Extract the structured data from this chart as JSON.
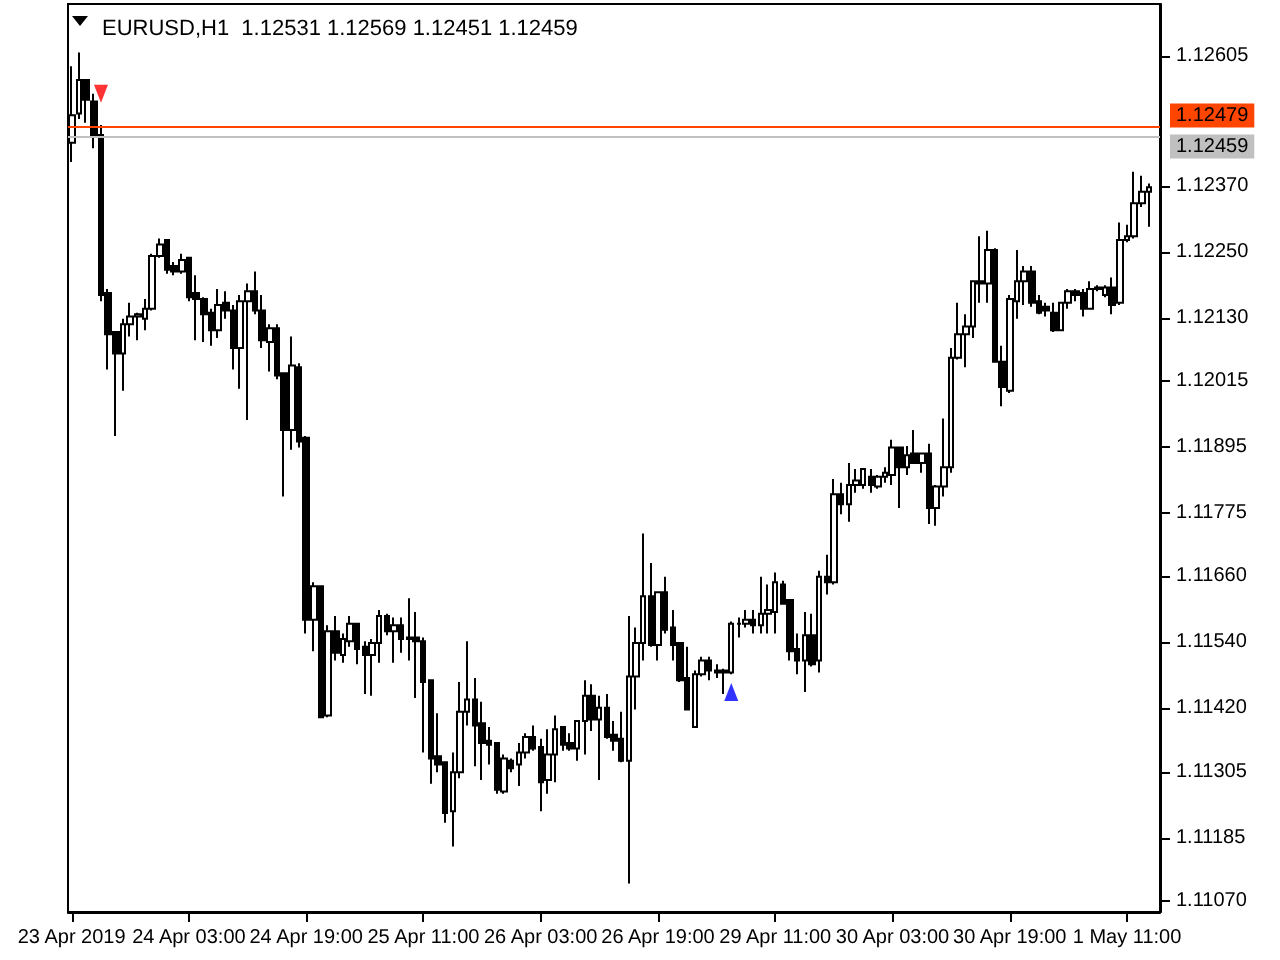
{
  "chart_data": {
    "type": "candlestick",
    "title": "EURUSD,H1  1.12531 1.12569 1.12451 1.12459",
    "categories": [
      "23 Apr 2019",
      null,
      null,
      null,
      null,
      null,
      null,
      null,
      null,
      null,
      null,
      null,
      null,
      null,
      null,
      null,
      "24 Apr 03:00",
      null,
      null,
      null,
      null,
      null,
      null,
      null,
      null,
      null,
      null,
      null,
      null,
      null,
      null,
      null,
      "24 Apr 19:00",
      null,
      null,
      null,
      null,
      null,
      null,
      null,
      null,
      null,
      null,
      null,
      null,
      null,
      null,
      null,
      "25 Apr 11:00",
      null,
      null,
      null,
      null,
      null,
      null,
      null,
      null,
      null,
      null,
      null,
      null,
      null,
      null,
      null,
      "26 Apr 03:00",
      null,
      null,
      null,
      null,
      null,
      null,
      null,
      null,
      null,
      null,
      null,
      null,
      null,
      null,
      null,
      "26 Apr 19:00",
      null,
      null,
      null,
      null,
      null,
      null,
      null,
      null,
      null,
      null,
      null,
      null,
      null,
      null,
      null,
      "29 Apr 11:00",
      null,
      null,
      null,
      null,
      null,
      null,
      null,
      null,
      null,
      null,
      null,
      null,
      null,
      null,
      null,
      "30 Apr 03:00",
      null,
      null,
      null,
      null,
      null,
      null,
      null,
      null,
      null,
      null,
      null,
      null,
      null,
      null,
      null,
      "30 Apr 19:00",
      null,
      null,
      null,
      null,
      null,
      null,
      null,
      null,
      null,
      null,
      null,
      null,
      null,
      null,
      null,
      "1 May 11:00",
      null,
      null,
      null
    ],
    "ohlc": [
      [
        1.12448,
        1.12587,
        1.12413,
        1.12498
      ],
      [
        1.12501,
        1.12612,
        1.12491,
        1.12562
      ],
      [
        1.12562,
        1.12562,
        1.12484,
        1.12526
      ],
      [
        1.12523,
        1.12537,
        1.12438,
        1.12459
      ],
      [
        1.12462,
        1.1248,
        1.1216,
        1.12171
      ],
      [
        1.12175,
        1.12182,
        1.12036,
        1.121
      ],
      [
        1.12104,
        1.12104,
        1.11915,
        1.12065
      ],
      [
        1.12065,
        1.12128,
        1.11997,
        1.12118
      ],
      [
        1.12118,
        1.12157,
        1.12096,
        1.12132
      ],
      [
        1.12132,
        1.12139,
        1.12089,
        1.12136
      ],
      [
        1.12128,
        1.12164,
        1.12107,
        1.12146
      ],
      [
        1.12146,
        1.12246,
        1.12143,
        1.12242
      ],
      [
        1.12242,
        1.12274,
        1.12239,
        1.12263
      ],
      [
        1.12271,
        1.12271,
        1.1221,
        1.12217
      ],
      [
        1.12224,
        1.12231,
        1.12207,
        1.12214
      ],
      [
        1.12214,
        1.12246,
        1.1221,
        1.12235
      ],
      [
        1.12239,
        1.12239,
        1.1216,
        1.12167
      ],
      [
        1.12175,
        1.12207,
        1.12089,
        1.12164
      ],
      [
        1.12164,
        1.12167,
        1.12086,
        1.12136
      ],
      [
        1.12139,
        1.12146,
        1.12079,
        1.12107
      ],
      [
        1.12107,
        1.12182,
        1.12093,
        1.12153
      ],
      [
        1.12157,
        1.12178,
        1.12128,
        1.12143
      ],
      [
        1.12143,
        1.12153,
        1.12036,
        1.12075
      ],
      [
        1.12075,
        1.12171,
        1.12001,
        1.1216
      ],
      [
        1.1216,
        1.12192,
        1.11944,
        1.12178
      ],
      [
        1.12178,
        1.12214,
        1.12136,
        1.12143
      ],
      [
        1.12143,
        1.12171,
        1.12075,
        1.12089
      ],
      [
        1.12086,
        1.12118,
        1.12032,
        1.12111
      ],
      [
        1.12111,
        1.12118,
        1.12018,
        1.12025
      ],
      [
        1.12029,
        1.12029,
        1.11805,
        1.11926
      ],
      [
        1.11926,
        1.12096,
        1.1189,
        1.12043
      ],
      [
        1.1204,
        1.12047,
        1.11894,
        1.11905
      ],
      [
        1.11912,
        1.11915,
        1.11556,
        1.11581
      ],
      [
        1.11581,
        1.11649,
        1.11524,
        1.11642
      ],
      [
        1.11642,
        1.11642,
        1.11404,
        1.11404
      ],
      [
        1.11407,
        1.11571,
        1.11404,
        1.1156
      ],
      [
        1.1156,
        1.11588,
        1.11507,
        1.11521
      ],
      [
        1.11517,
        1.11556,
        1.11503,
        1.11546
      ],
      [
        1.11542,
        1.11588,
        1.11532,
        1.11574
      ],
      [
        1.11574,
        1.11574,
        1.115,
        1.11528
      ],
      [
        1.11532,
        1.11542,
        1.11446,
        1.11517
      ],
      [
        1.11517,
        1.11546,
        1.11443,
        1.11539
      ],
      [
        1.11539,
        1.11599,
        1.11503,
        1.11588
      ],
      [
        1.11588,
        1.11592,
        1.11553,
        1.1156
      ],
      [
        1.1156,
        1.11585,
        1.11503,
        1.11571
      ],
      [
        1.11571,
        1.11585,
        1.11521,
        1.11546
      ],
      [
        1.11546,
        1.1162,
        1.11507,
        1.11549
      ],
      [
        1.11549,
        1.11595,
        1.11439,
        1.11542
      ],
      [
        1.11542,
        1.11549,
        1.1134,
        1.11468
      ],
      [
        1.11471,
        1.11471,
        1.11283,
        1.11329
      ],
      [
        1.11333,
        1.11411,
        1.11304,
        1.11318
      ],
      [
        1.11322,
        1.11322,
        1.11212,
        1.1123
      ],
      [
        1.11233,
        1.1134,
        1.11169,
        1.11304
      ],
      [
        1.11304,
        1.11468,
        1.11293,
        1.11414
      ],
      [
        1.11414,
        1.11542,
        1.11389,
        1.11436
      ],
      [
        1.11436,
        1.11475,
        1.11315,
        1.11389
      ],
      [
        1.11393,
        1.11432,
        1.1129,
        1.11357
      ],
      [
        1.11361,
        1.11386,
        1.11318,
        1.11354
      ],
      [
        1.11357,
        1.11357,
        1.11265,
        1.11272
      ],
      [
        1.11269,
        1.11336,
        1.11265,
        1.11329
      ],
      [
        1.11325,
        1.11329,
        1.11304,
        1.11311
      ],
      [
        1.11318,
        1.11357,
        1.11279,
        1.1134
      ],
      [
        1.1134,
        1.11375,
        1.11329,
        1.11368
      ],
      [
        1.11368,
        1.11389,
        1.11343,
        1.11347
      ],
      [
        1.1135,
        1.11365,
        1.11233,
        1.11286
      ],
      [
        1.1129,
        1.11382,
        1.11265,
        1.11336
      ],
      [
        1.11336,
        1.11407,
        1.11286,
        1.11382
      ],
      [
        1.11386,
        1.11386,
        1.11343,
        1.11354
      ],
      [
        1.11357,
        1.11375,
        1.11343,
        1.11347
      ],
      [
        1.11347,
        1.11397,
        1.11325,
        1.11397
      ],
      [
        1.11397,
        1.11471,
        1.11336,
        1.11443
      ],
      [
        1.11443,
        1.11464,
        1.11379,
        1.114
      ],
      [
        1.114,
        1.11443,
        1.1129,
        1.11421
      ],
      [
        1.11421,
        1.11446,
        1.11365,
        1.11368
      ],
      [
        1.11372,
        1.11397,
        1.11343,
        1.11361
      ],
      [
        1.11365,
        1.11414,
        1.11322,
        1.11325
      ],
      [
        1.11325,
        1.11588,
        1.11102,
        1.11478
      ],
      [
        1.11478,
        1.11567,
        1.11418,
        1.11539
      ],
      [
        1.11539,
        1.11738,
        1.11507,
        1.11624
      ],
      [
        1.11624,
        1.11684,
        1.11532,
        1.11535
      ],
      [
        1.11535,
        1.11631,
        1.11507,
        1.11631
      ],
      [
        1.11631,
        1.11659,
        1.11556,
        1.11563
      ],
      [
        1.11567,
        1.11599,
        1.11507,
        1.11535
      ],
      [
        1.11539,
        1.11539,
        1.11468,
        1.11471
      ],
      [
        1.11475,
        1.11532,
        1.11418,
        1.11418
      ],
      [
        1.11386,
        1.11489,
        1.11386,
        1.11482
      ],
      [
        1.11482,
        1.11514,
        1.11478,
        1.11507
      ],
      [
        1.11507,
        1.11514,
        1.11471,
        1.11489
      ],
      [
        1.11489,
        1.115,
        1.11475,
        1.11485
      ],
      [
        1.11489,
        1.11492,
        1.11446,
        1.11485
      ],
      [
        1.11485,
        1.11578,
        1.11482,
        1.11574
      ],
      [
        1.11574,
        1.11585,
        1.11549,
        1.11574
      ],
      [
        1.11574,
        1.11599,
        1.11567,
        1.11581
      ],
      [
        1.11581,
        1.11599,
        1.11556,
        1.11571
      ],
      [
        1.11571,
        1.11659,
        1.11556,
        1.11592
      ],
      [
        1.11592,
        1.11645,
        1.11556,
        1.11599
      ],
      [
        1.11595,
        1.11667,
        1.11556,
        1.11649
      ],
      [
        1.11645,
        1.11652,
        1.1161,
        1.1161
      ],
      [
        1.11617,
        1.11617,
        1.11507,
        1.11524
      ],
      [
        1.11528,
        1.11556,
        1.11482,
        1.11507
      ],
      [
        1.11507,
        1.11595,
        1.1145,
        1.11553
      ],
      [
        1.11553,
        1.11592,
        1.11496,
        1.115
      ],
      [
        1.11507,
        1.1167,
        1.11485,
        1.11659
      ],
      [
        1.11659,
        1.11699,
        1.11627,
        1.11649
      ],
      [
        1.11649,
        1.11837,
        1.11645,
        1.11809
      ],
      [
        1.11809,
        1.1183,
        1.11773,
        1.11791
      ],
      [
        1.11791,
        1.11866,
        1.11759,
        1.11826
      ],
      [
        1.11826,
        1.11855,
        1.11812,
        1.11834
      ],
      [
        1.11826,
        1.11855,
        1.11819,
        1.11855
      ],
      [
        1.11841,
        1.11855,
        1.11812,
        1.11826
      ],
      [
        1.11823,
        1.11844,
        1.11819,
        1.11841
      ],
      [
        1.11841,
        1.11858,
        1.1183,
        1.11848
      ],
      [
        1.11844,
        1.11908,
        1.11826,
        1.11894
      ],
      [
        1.11894,
        1.11894,
        1.11784,
        1.11858
      ],
      [
        1.11858,
        1.11897,
        1.11844,
        1.1188
      ],
      [
        1.11883,
        1.11926,
        1.11866,
        1.11866
      ],
      [
        1.11866,
        1.11883,
        1.11848,
        1.11883
      ],
      [
        1.11883,
        1.11901,
        1.11755,
        1.11784
      ],
      [
        1.11784,
        1.11826,
        1.11752,
        1.11823
      ],
      [
        1.11823,
        1.11947,
        1.11805,
        1.11858
      ],
      [
        1.11858,
        1.12075,
        1.11848,
        1.12057
      ],
      [
        1.12057,
        1.12157,
        1.12054,
        1.121
      ],
      [
        1.121,
        1.12136,
        1.1204,
        1.12114
      ],
      [
        1.12114,
        1.12196,
        1.12093,
        1.12196
      ],
      [
        1.12196,
        1.12278,
        1.12157,
        1.12192
      ],
      [
        1.12192,
        1.12288,
        1.12157,
        1.12253
      ],
      [
        1.12253,
        1.12256,
        1.1205,
        1.1205
      ],
      [
        1.1205,
        1.12079,
        1.11969,
        1.12004
      ],
      [
        1.11997,
        1.12171,
        1.11993,
        1.12164
      ],
      [
        1.1216,
        1.12253,
        1.12128,
        1.12196
      ],
      [
        1.12196,
        1.12224,
        1.12153,
        1.12214
      ],
      [
        1.12214,
        1.12224,
        1.1215,
        1.12157
      ],
      [
        1.1216,
        1.12171,
        1.12136,
        1.12139
      ],
      [
        1.1215,
        1.12157,
        1.12132,
        1.12143
      ],
      [
        1.12139,
        1.12157,
        1.12104,
        1.12107
      ],
      [
        1.12107,
        1.12157,
        1.12107,
        1.12157
      ],
      [
        1.12157,
        1.12182,
        1.12146,
        1.12178
      ],
      [
        1.12178,
        1.12182,
        1.1216,
        1.12171
      ],
      [
        1.12175,
        1.12182,
        1.12132,
        1.12146
      ],
      [
        1.12146,
        1.12196,
        1.12146,
        1.12182
      ],
      [
        1.12182,
        1.12189,
        1.12178,
        1.12185
      ],
      [
        1.12171,
        1.12189,
        1.12167,
        1.12185
      ],
      [
        1.12185,
        1.12203,
        1.12136,
        1.12153
      ],
      [
        1.12157,
        1.12303,
        1.12153,
        1.12271
      ],
      [
        1.12271,
        1.12299,
        1.12267,
        1.12278
      ],
      [
        1.12278,
        1.12395,
        1.12274,
        1.12338
      ],
      [
        1.12338,
        1.12388,
        1.12331,
        1.12359
      ],
      [
        1.12359,
        1.12374,
        1.12295,
        1.12367
      ]
    ],
    "series": [
      {
        "type": "scatter",
        "color": "#ff0000",
        "marker": "triangle",
        "values": [
          null,
          null,
          null,
          null,
          1.12537,
          null,
          null,
          null,
          null,
          null,
          null,
          null,
          null,
          null,
          null,
          null,
          null,
          null,
          null,
          null,
          null,
          null,
          null,
          null,
          null,
          null,
          null,
          null,
          null,
          null,
          null,
          null,
          null,
          null,
          null,
          null,
          null,
          null,
          null,
          null,
          null,
          null,
          null,
          null,
          null,
          null,
          null,
          null,
          null,
          null,
          null,
          null,
          null,
          null,
          null,
          null,
          null,
          null,
          null,
          null,
          null,
          null,
          null,
          null,
          null,
          null,
          null,
          null,
          null,
          null,
          null,
          null,
          null,
          null,
          null,
          null,
          null,
          null,
          null,
          null,
          null,
          null,
          null,
          null,
          null,
          null,
          null,
          null,
          null,
          null,
          null,
          null,
          null,
          null,
          null,
          null,
          null,
          null,
          null,
          null,
          null,
          null,
          null,
          null,
          null,
          null,
          null,
          null,
          null,
          null,
          null,
          null,
          null,
          null,
          null,
          null,
          null,
          null,
          null,
          null,
          null,
          null,
          null,
          null,
          null,
          null,
          null,
          null,
          null,
          null,
          null,
          null,
          null,
          null,
          null,
          null,
          null,
          null,
          null,
          null,
          null,
          null,
          null,
          null,
          null,
          null,
          null,
          null
        ]
      },
      {
        "type": "scatter",
        "color": "#0000ff",
        "marker": "triangle",
        "values": [
          null,
          null,
          null,
          null,
          null,
          null,
          null,
          null,
          null,
          null,
          null,
          null,
          null,
          null,
          null,
          null,
          null,
          null,
          null,
          null,
          null,
          null,
          null,
          null,
          null,
          null,
          null,
          null,
          null,
          null,
          null,
          null,
          null,
          null,
          null,
          null,
          null,
          null,
          null,
          null,
          null,
          null,
          null,
          null,
          null,
          null,
          null,
          null,
          null,
          null,
          null,
          null,
          null,
          null,
          null,
          null,
          null,
          null,
          null,
          null,
          null,
          null,
          null,
          null,
          null,
          null,
          null,
          null,
          null,
          null,
          null,
          null,
          null,
          null,
          null,
          null,
          null,
          null,
          null,
          null,
          null,
          null,
          null,
          null,
          null,
          null,
          null,
          null,
          null,
          null,
          1.1145,
          null,
          null,
          null,
          null,
          null,
          null,
          null,
          null,
          null,
          null,
          null,
          null,
          null,
          null,
          null,
          null,
          null,
          null,
          null,
          null,
          null,
          null,
          null,
          null,
          null,
          null,
          null,
          null,
          null,
          null,
          null,
          null,
          null,
          null,
          null,
          null,
          null,
          null,
          null,
          null,
          null,
          null,
          null,
          null,
          null,
          null,
          null,
          null,
          null,
          null,
          null,
          null,
          null,
          null,
          null,
          null,
          null
        ]
      }
    ],
    "ylim": [
      1.1105,
      1.127
    ],
    "yticks": [
      1.12605,
      {
        "value": 1.1237,
        "label": "1.12370"
      },
      {
        "value": 1.1225,
        "label": "1.12250"
      },
      {
        "value": 1.1213,
        "label": "1.12130"
      },
      1.12015,
      1.11895,
      1.11775,
      {
        "value": 1.1166,
        "label": "1.11660"
      },
      {
        "value": 1.1154,
        "label": "1.11540"
      },
      {
        "value": 1.1142,
        "label": "1.11420"
      },
      1.11305,
      1.11185,
      {
        "value": 1.1107,
        "label": "1.11070"
      }
    ],
    "ref_lines": [
      {
        "axis": "y",
        "value": 1.12479,
        "label": "1.12479",
        "color": "#ff4500"
      },
      {
        "axis": "y",
        "value": 1.12459,
        "label": "1.12459",
        "color": "#c0c0c0"
      }
    ]
  }
}
